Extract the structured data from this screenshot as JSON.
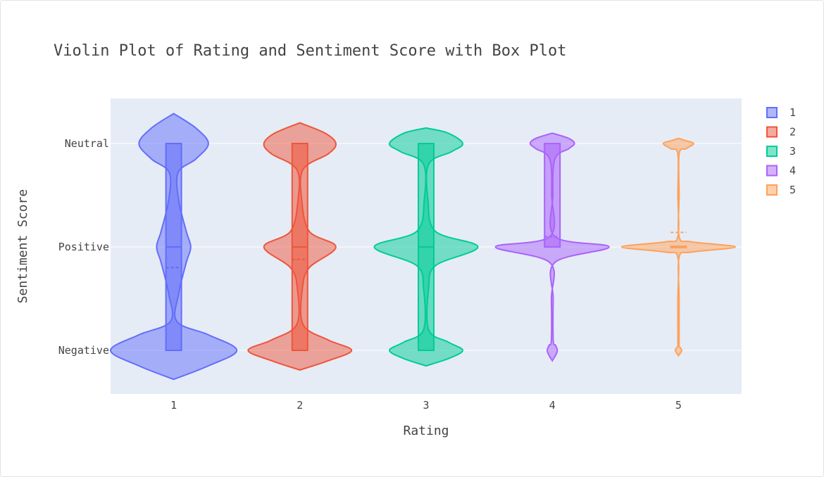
{
  "chart_data": {
    "type": "violin",
    "title": "Violin Plot of Rating and Sentiment Score with Box Plot",
    "xlabel": "Rating",
    "ylabel": "Sentiment Score",
    "categories": [
      "1",
      "2",
      "3",
      "4",
      "5"
    ],
    "y_categories": [
      "Negative",
      "Positive",
      "Neutral"
    ],
    "y_numeric": [
      0,
      1,
      2
    ],
    "legend_position": "top-right",
    "series": [
      {
        "name": "1",
        "color": "#636efa",
        "box": {
          "q1": 0,
          "median": 1,
          "q3": 2,
          "mean": 0.8
        },
        "density": [
          [
            -0.28,
            0
          ],
          [
            -0.15,
            0.55
          ],
          [
            0,
            1.0
          ],
          [
            0.15,
            0.55
          ],
          [
            0.28,
            0.05
          ],
          [
            0.55,
            0.08
          ],
          [
            0.85,
            0.2
          ],
          [
            1.0,
            0.27
          ],
          [
            1.15,
            0.2
          ],
          [
            1.45,
            0.08
          ],
          [
            1.72,
            0.07
          ],
          [
            1.85,
            0.35
          ],
          [
            2.0,
            0.55
          ],
          [
            2.15,
            0.35
          ],
          [
            2.29,
            0
          ]
        ]
      },
      {
        "name": "2",
        "color": "#ef553b",
        "box": {
          "q1": 0,
          "median": 1,
          "q3": 2,
          "mean": 0.88
        },
        "density": [
          [
            -0.19,
            0
          ],
          [
            -0.1,
            0.45
          ],
          [
            0,
            0.82
          ],
          [
            0.1,
            0.45
          ],
          [
            0.25,
            0.05
          ],
          [
            0.6,
            0.04
          ],
          [
            0.8,
            0.15
          ],
          [
            1.0,
            0.57
          ],
          [
            1.15,
            0.15
          ],
          [
            1.45,
            0.03
          ],
          [
            1.75,
            0.05
          ],
          [
            1.9,
            0.45
          ],
          [
            2.0,
            0.57
          ],
          [
            2.1,
            0.4
          ],
          [
            2.2,
            0
          ]
        ]
      },
      {
        "name": "3",
        "color": "#00cc96",
        "box": {
          "q1": 0,
          "median": 1,
          "q3": 2,
          "mean": 1.0
        },
        "density": [
          [
            -0.15,
            0
          ],
          [
            -0.08,
            0.35
          ],
          [
            0,
            0.58
          ],
          [
            0.08,
            0.35
          ],
          [
            0.2,
            0.04
          ],
          [
            0.6,
            0.04
          ],
          [
            0.82,
            0.15
          ],
          [
            1.0,
            0.82
          ],
          [
            1.15,
            0.15
          ],
          [
            1.45,
            0.03
          ],
          [
            1.8,
            0.04
          ],
          [
            1.92,
            0.4
          ],
          [
            2.0,
            0.58
          ],
          [
            2.1,
            0.35
          ],
          [
            2.15,
            0
          ]
        ]
      },
      {
        "name": "4",
        "color": "#ab63fa",
        "box": {
          "q1": 1,
          "median": 1,
          "q3": 2,
          "mean": 1.1
        },
        "density": [
          [
            -0.1,
            0
          ],
          [
            -0.05,
            0.05
          ],
          [
            0,
            0.08
          ],
          [
            0.05,
            0.05
          ],
          [
            0.1,
            0.015
          ],
          [
            0.5,
            0.015
          ],
          [
            0.85,
            0.04
          ],
          [
            1.0,
            0.9
          ],
          [
            1.1,
            0.04
          ],
          [
            1.5,
            0.01
          ],
          [
            1.85,
            0.04
          ],
          [
            1.95,
            0.26
          ],
          [
            2.0,
            0.35
          ],
          [
            2.05,
            0.26
          ],
          [
            2.1,
            0
          ]
        ]
      },
      {
        "name": "5",
        "color": "#ffa15a",
        "box": {
          "q1": 1,
          "median": 1,
          "q3": 1,
          "mean": 1.14
        },
        "density": [
          [
            -0.05,
            0
          ],
          [
            0,
            0.05
          ],
          [
            0.05,
            0
          ],
          [
            0.08,
            0.01
          ],
          [
            0.5,
            0.01
          ],
          [
            0.9,
            0.01
          ],
          [
            0.95,
            0.2
          ],
          [
            1.0,
            0.9
          ],
          [
            1.05,
            0.2
          ],
          [
            1.1,
            0.01
          ],
          [
            1.5,
            0.01
          ],
          [
            1.9,
            0.01
          ],
          [
            1.95,
            0.12
          ],
          [
            2.0,
            0.24
          ],
          [
            2.03,
            0.1
          ],
          [
            2.05,
            0
          ]
        ]
      }
    ]
  }
}
